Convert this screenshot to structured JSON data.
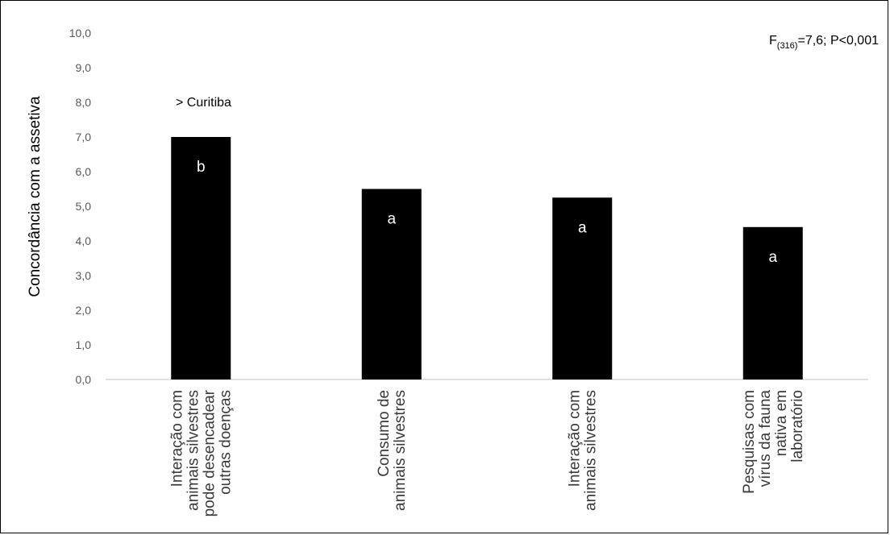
{
  "chart_data": {
    "type": "bar",
    "ylabel": "Concordância com a assetiva",
    "ylim": [
      0,
      10
    ],
    "y_ticks": [
      "0,0",
      "1,0",
      "2,0",
      "3,0",
      "4,0",
      "5,0",
      "6,0",
      "7,0",
      "8,0",
      "9,0",
      "10,0"
    ],
    "categories": [
      [
        "Interação com",
        "animais silvestres",
        "pode desencadear",
        "outras doenças"
      ],
      [
        "Consumo de",
        "animais silvestres"
      ],
      [
        "Interação com",
        "animais silvestres"
      ],
      [
        "Pesquisas com",
        "vírus da fauna",
        "nativa em",
        "laboratório"
      ]
    ],
    "values": [
      7.0,
      5.5,
      5.25,
      4.4
    ],
    "bar_labels": [
      "b",
      "a",
      "a",
      "a"
    ],
    "bar_color": "#000000",
    "annotation": "> Curitiba",
    "stat_test": {
      "prefix": "F",
      "sub": "(316)",
      "rest": "=7,6; P<0,001"
    },
    "grid": false,
    "legend": "none"
  }
}
